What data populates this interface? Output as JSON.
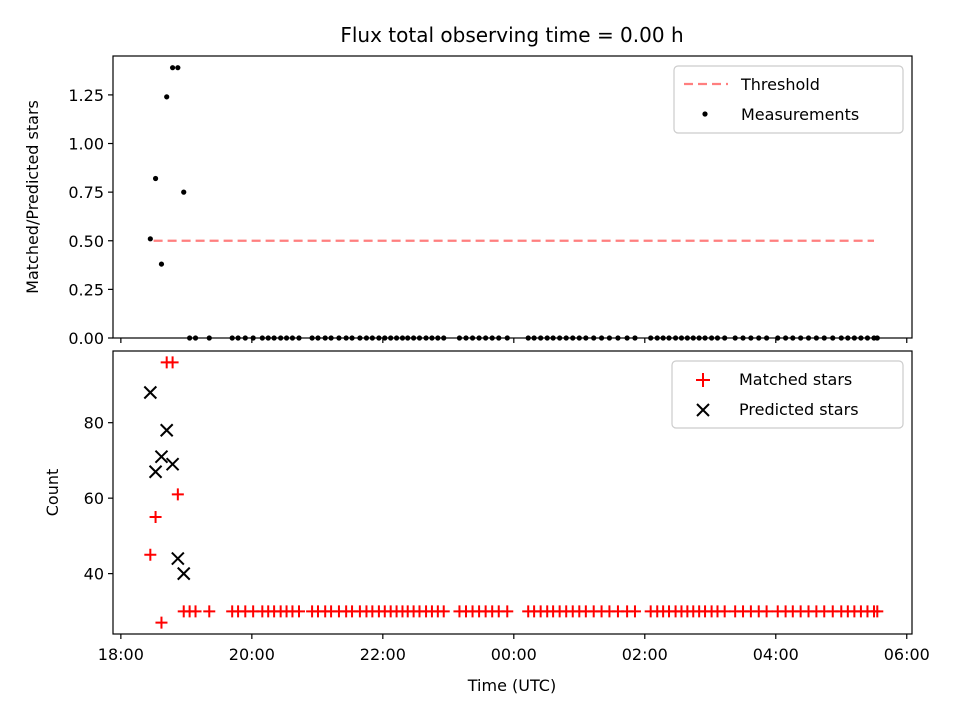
{
  "chart_data": {
    "type": "scatter",
    "title": "Flux total observing time = 0.00 h",
    "xlabel": "Time (UTC)",
    "x_unit": "hours since 18:00 UTC",
    "xlim": [
      -0.12,
      12.08
    ],
    "xticks": [
      {
        "value": 0,
        "label": "18:00"
      },
      {
        "value": 2,
        "label": "20:00"
      },
      {
        "value": 4,
        "label": "22:00"
      },
      {
        "value": 6,
        "label": "00:00"
      },
      {
        "value": 8,
        "label": "02:00"
      },
      {
        "value": 10,
        "label": "04:00"
      },
      {
        "value": 12,
        "label": "06:00"
      }
    ],
    "top": {
      "ylabel": "Matched/Predicted stars",
      "ylim": [
        0,
        1.45
      ],
      "yticks": [
        {
          "value": 0,
          "label": "0.00"
        },
        {
          "value": 0.25,
          "label": "0.25"
        },
        {
          "value": 0.5,
          "label": "0.50"
        },
        {
          "value": 0.75,
          "label": "0.75"
        },
        {
          "value": 1.0,
          "label": "1.00"
        },
        {
          "value": 1.25,
          "label": "1.25"
        }
      ],
      "legend": {
        "position": "upper right",
        "entries": [
          "Threshold",
          "Measurements"
        ]
      },
      "threshold": {
        "name": "Threshold",
        "value": 0.5,
        "x_start": 0.5,
        "x_end": 11.5,
        "color": "#ff7f7f"
      },
      "measurements": {
        "name": "Measurements",
        "color": "#000000",
        "points": [
          [
            0.45,
            0.51
          ],
          [
            0.53,
            0.82
          ],
          [
            0.62,
            0.38
          ],
          [
            0.7,
            1.24
          ],
          [
            0.79,
            1.39
          ],
          [
            0.87,
            1.39
          ],
          [
            0.96,
            0.75
          ]
        ],
        "zero_x": [
          1.05,
          1.14,
          1.35,
          1.7,
          1.79,
          1.9,
          2.02,
          2.16,
          2.25,
          2.34,
          2.44,
          2.53,
          2.62,
          2.72,
          2.92,
          3.01,
          3.12,
          3.21,
          3.33,
          3.44,
          3.53,
          3.65,
          3.75,
          3.84,
          3.94,
          4.03,
          4.12,
          4.21,
          4.3,
          4.38,
          4.47,
          4.56,
          4.66,
          4.75,
          4.84,
          4.93,
          5.17,
          5.27,
          5.37,
          5.47,
          5.57,
          5.67,
          5.77,
          5.9,
          6.22,
          6.31,
          6.41,
          6.51,
          6.6,
          6.7,
          6.8,
          6.9,
          7.0,
          7.1,
          7.22,
          7.34,
          7.46,
          7.59,
          7.73,
          7.85,
          8.09,
          8.19,
          8.28,
          8.37,
          8.47,
          8.56,
          8.65,
          8.74,
          8.83,
          8.92,
          9.02,
          9.11,
          9.22,
          9.38,
          9.5,
          9.62,
          9.74,
          9.86,
          10.03,
          10.15,
          10.26,
          10.38,
          10.5,
          10.62,
          10.74,
          10.87,
          11.0,
          11.1,
          11.2,
          11.3,
          11.4,
          11.5,
          11.55
        ]
      }
    },
    "bottom": {
      "ylabel": "Count",
      "ylim": [
        24,
        99
      ],
      "yticks": [
        {
          "value": 40,
          "label": "40"
        },
        {
          "value": 60,
          "label": "60"
        },
        {
          "value": 80,
          "label": "80"
        }
      ],
      "legend": {
        "position": "upper right",
        "entries": [
          "Matched stars",
          "Predicted stars"
        ]
      },
      "matched": {
        "name": "Matched stars",
        "color": "#ff0000",
        "points": [
          [
            0.45,
            45
          ],
          [
            0.53,
            55
          ],
          [
            0.62,
            27
          ],
          [
            0.7,
            96
          ],
          [
            0.79,
            96
          ],
          [
            0.87,
            61
          ]
        ],
        "baseline_value": 30,
        "baseline_x": [
          0.96,
          1.05,
          1.14,
          1.35,
          1.7,
          1.79,
          1.9,
          2.02,
          2.16,
          2.25,
          2.34,
          2.44,
          2.53,
          2.62,
          2.72,
          2.92,
          3.01,
          3.12,
          3.21,
          3.33,
          3.44,
          3.53,
          3.65,
          3.75,
          3.84,
          3.94,
          4.03,
          4.12,
          4.21,
          4.3,
          4.38,
          4.47,
          4.56,
          4.66,
          4.75,
          4.84,
          4.93,
          5.17,
          5.27,
          5.37,
          5.47,
          5.57,
          5.67,
          5.77,
          5.9,
          6.22,
          6.31,
          6.41,
          6.51,
          6.6,
          6.7,
          6.8,
          6.9,
          7.0,
          7.1,
          7.22,
          7.34,
          7.46,
          7.59,
          7.73,
          7.85,
          8.09,
          8.19,
          8.28,
          8.37,
          8.47,
          8.56,
          8.65,
          8.74,
          8.83,
          8.92,
          9.02,
          9.11,
          9.22,
          9.38,
          9.5,
          9.62,
          9.74,
          9.86,
          10.03,
          10.15,
          10.26,
          10.38,
          10.5,
          10.62,
          10.74,
          10.87,
          11.0,
          11.1,
          11.2,
          11.3,
          11.4,
          11.5,
          11.55
        ]
      },
      "predicted": {
        "name": "Predicted stars",
        "color": "#000000",
        "points": [
          [
            0.45,
            88
          ],
          [
            0.53,
            67
          ],
          [
            0.62,
            71
          ],
          [
            0.7,
            78
          ],
          [
            0.79,
            69
          ],
          [
            0.87,
            44
          ],
          [
            0.96,
            40
          ]
        ]
      }
    }
  }
}
